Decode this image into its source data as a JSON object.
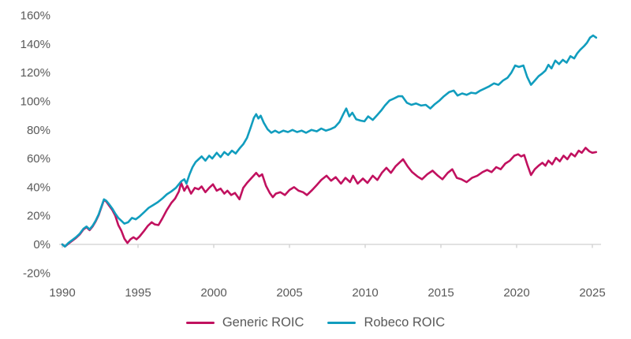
{
  "chart_data": {
    "type": "line",
    "title": "",
    "xlabel": "",
    "ylabel": "",
    "xlim": [
      1990,
      2025.3
    ],
    "ylim": [
      -20,
      160
    ],
    "x_tick_values": [
      1990,
      1995,
      2000,
      2005,
      2010,
      2015,
      2020,
      2025
    ],
    "x_tick_labels": [
      "1990",
      "1995",
      "2000",
      "2005",
      "2010",
      "2015",
      "2020",
      "2025"
    ],
    "y_tick_values": [
      160,
      140,
      120,
      100,
      80,
      60,
      40,
      20,
      0,
      -20
    ],
    "y_tick_labels": [
      "160%",
      "140%",
      "120%",
      "100%",
      "80%",
      "60%",
      "40%",
      "20%",
      "0%",
      "-20%"
    ],
    "grid": "zero-baseline-only",
    "legend_position": "bottom-center",
    "series": [
      {
        "name": "Generic ROIC",
        "color": "#C1115F",
        "points": [
          [
            1990.0,
            0
          ],
          [
            1990.17,
            -1.5
          ],
          [
            1990.4,
            0.5
          ],
          [
            1990.65,
            2.5
          ],
          [
            1990.9,
            4.5
          ],
          [
            1991.15,
            7
          ],
          [
            1991.4,
            10.5
          ],
          [
            1991.6,
            12
          ],
          [
            1991.8,
            10
          ],
          [
            1992.0,
            12.5
          ],
          [
            1992.2,
            16
          ],
          [
            1992.4,
            20.5
          ],
          [
            1992.6,
            26.5
          ],
          [
            1992.75,
            31
          ],
          [
            1992.9,
            30
          ],
          [
            1993.1,
            27
          ],
          [
            1993.3,
            24
          ],
          [
            1993.5,
            20
          ],
          [
            1993.7,
            13.5
          ],
          [
            1993.9,
            9.5
          ],
          [
            1994.1,
            4
          ],
          [
            1994.3,
            1
          ],
          [
            1994.5,
            3.5
          ],
          [
            1994.7,
            5
          ],
          [
            1994.9,
            3.5
          ],
          [
            1995.1,
            5.5
          ],
          [
            1995.4,
            9.5
          ],
          [
            1995.65,
            13
          ],
          [
            1995.9,
            15.5
          ],
          [
            1996.1,
            14
          ],
          [
            1996.35,
            13.5
          ],
          [
            1996.6,
            18
          ],
          [
            1996.9,
            24
          ],
          [
            1997.2,
            29
          ],
          [
            1997.45,
            32
          ],
          [
            1997.7,
            37
          ],
          [
            1997.85,
            43
          ],
          [
            1998.05,
            37.5
          ],
          [
            1998.25,
            41
          ],
          [
            1998.5,
            35.5
          ],
          [
            1998.75,
            39.5
          ],
          [
            1999.0,
            38.5
          ],
          [
            1999.2,
            40.5
          ],
          [
            1999.45,
            36.5
          ],
          [
            1999.7,
            39.5
          ],
          [
            1999.95,
            42
          ],
          [
            2000.2,
            37.5
          ],
          [
            2000.45,
            39
          ],
          [
            2000.7,
            35.5
          ],
          [
            2000.9,
            37.5
          ],
          [
            2001.15,
            34.5
          ],
          [
            2001.4,
            36
          ],
          [
            2001.7,
            31.5
          ],
          [
            2001.95,
            39.5
          ],
          [
            2002.2,
            43
          ],
          [
            2002.5,
            46.5
          ],
          [
            2002.8,
            50
          ],
          [
            2003.0,
            47.5
          ],
          [
            2003.2,
            49
          ],
          [
            2003.45,
            41
          ],
          [
            2003.7,
            36
          ],
          [
            2003.9,
            33
          ],
          [
            2004.1,
            35.5
          ],
          [
            2004.4,
            36.5
          ],
          [
            2004.7,
            34.5
          ],
          [
            2005.0,
            38
          ],
          [
            2005.3,
            40
          ],
          [
            2005.6,
            37.5
          ],
          [
            2005.9,
            36.5
          ],
          [
            2006.15,
            34.5
          ],
          [
            2006.5,
            38
          ],
          [
            2006.8,
            41.5
          ],
          [
            2007.1,
            45
          ],
          [
            2007.45,
            48
          ],
          [
            2007.75,
            44.5
          ],
          [
            2008.05,
            47
          ],
          [
            2008.4,
            42.5
          ],
          [
            2008.7,
            46.5
          ],
          [
            2009.0,
            43.5
          ],
          [
            2009.2,
            48
          ],
          [
            2009.5,
            42.5
          ],
          [
            2009.85,
            46
          ],
          [
            2010.15,
            43
          ],
          [
            2010.5,
            48
          ],
          [
            2010.8,
            45
          ],
          [
            2011.1,
            50
          ],
          [
            2011.4,
            53.5
          ],
          [
            2011.7,
            50
          ],
          [
            2012.0,
            54.5
          ],
          [
            2012.3,
            57.5
          ],
          [
            2012.5,
            59.5
          ],
          [
            2012.8,
            54.5
          ],
          [
            2013.1,
            50.5
          ],
          [
            2013.45,
            47.5
          ],
          [
            2013.75,
            45.5
          ],
          [
            2014.1,
            49
          ],
          [
            2014.45,
            51.5
          ],
          [
            2014.8,
            48
          ],
          [
            2015.1,
            45.5
          ],
          [
            2015.45,
            50
          ],
          [
            2015.75,
            52.5
          ],
          [
            2016.05,
            46.5
          ],
          [
            2016.35,
            45.5
          ],
          [
            2016.7,
            43.5
          ],
          [
            2017.05,
            46.5
          ],
          [
            2017.4,
            48
          ],
          [
            2017.75,
            50.5
          ],
          [
            2018.05,
            52
          ],
          [
            2018.35,
            50.5
          ],
          [
            2018.65,
            54
          ],
          [
            2018.95,
            52.5
          ],
          [
            2019.25,
            56.5
          ],
          [
            2019.55,
            58.5
          ],
          [
            2019.85,
            62
          ],
          [
            2020.1,
            63
          ],
          [
            2020.3,
            61.5
          ],
          [
            2020.5,
            62.5
          ],
          [
            2020.7,
            56
          ],
          [
            2020.95,
            48.5
          ],
          [
            2021.2,
            52.5
          ],
          [
            2021.45,
            55
          ],
          [
            2021.7,
            57
          ],
          [
            2021.9,
            55
          ],
          [
            2022.1,
            58.5
          ],
          [
            2022.35,
            56
          ],
          [
            2022.6,
            60.5
          ],
          [
            2022.85,
            58
          ],
          [
            2023.1,
            62
          ],
          [
            2023.35,
            59.5
          ],
          [
            2023.6,
            63.5
          ],
          [
            2023.85,
            61.5
          ],
          [
            2024.1,
            65.5
          ],
          [
            2024.3,
            64
          ],
          [
            2024.55,
            67.5
          ],
          [
            2024.8,
            65
          ],
          [
            2025.0,
            64
          ],
          [
            2025.25,
            64.5
          ]
        ]
      },
      {
        "name": "Robeco ROIC",
        "color": "#119DBE",
        "points": [
          [
            1990.0,
            0
          ],
          [
            1990.17,
            -1.5
          ],
          [
            1990.4,
            1
          ],
          [
            1990.65,
            3
          ],
          [
            1990.9,
            5
          ],
          [
            1991.15,
            7.5
          ],
          [
            1991.4,
            11
          ],
          [
            1991.6,
            12.5
          ],
          [
            1991.8,
            10.5
          ],
          [
            1992.0,
            13
          ],
          [
            1992.2,
            16.5
          ],
          [
            1992.4,
            21
          ],
          [
            1992.6,
            27
          ],
          [
            1992.75,
            31.5
          ],
          [
            1992.9,
            30.5
          ],
          [
            1993.1,
            28
          ],
          [
            1993.3,
            25
          ],
          [
            1993.5,
            21.5
          ],
          [
            1993.7,
            18.5
          ],
          [
            1993.9,
            16.5
          ],
          [
            1994.1,
            14.5
          ],
          [
            1994.35,
            15.5
          ],
          [
            1994.6,
            18.5
          ],
          [
            1994.85,
            17.5
          ],
          [
            1995.1,
            19.5
          ],
          [
            1995.4,
            22.5
          ],
          [
            1995.7,
            25.5
          ],
          [
            1996.0,
            27.5
          ],
          [
            1996.3,
            29.5
          ],
          [
            1996.6,
            32
          ],
          [
            1996.9,
            35
          ],
          [
            1997.2,
            37
          ],
          [
            1997.5,
            39.5
          ],
          [
            1997.85,
            44
          ],
          [
            1998.05,
            45.5
          ],
          [
            1998.2,
            42.5
          ],
          [
            1998.4,
            49
          ],
          [
            1998.6,
            54
          ],
          [
            1998.8,
            57.5
          ],
          [
            1999.0,
            59.5
          ],
          [
            1999.2,
            61.5
          ],
          [
            1999.45,
            58.5
          ],
          [
            1999.7,
            62
          ],
          [
            1999.9,
            60
          ],
          [
            2000.2,
            64
          ],
          [
            2000.45,
            61
          ],
          [
            2000.7,
            64.5
          ],
          [
            2000.95,
            62.5
          ],
          [
            2001.2,
            65.5
          ],
          [
            2001.45,
            63.5
          ],
          [
            2001.7,
            67
          ],
          [
            2001.95,
            70
          ],
          [
            2002.2,
            74.5
          ],
          [
            2002.45,
            82
          ],
          [
            2002.65,
            88.5
          ],
          [
            2002.8,
            91
          ],
          [
            2002.95,
            88
          ],
          [
            2003.1,
            90
          ],
          [
            2003.3,
            85
          ],
          [
            2003.55,
            80.5
          ],
          [
            2003.8,
            78
          ],
          [
            2004.05,
            79.5
          ],
          [
            2004.3,
            78
          ],
          [
            2004.6,
            79.5
          ],
          [
            2004.9,
            78.5
          ],
          [
            2005.2,
            80
          ],
          [
            2005.5,
            78.5
          ],
          [
            2005.8,
            79.5
          ],
          [
            2006.1,
            78
          ],
          [
            2006.45,
            80
          ],
          [
            2006.8,
            79
          ],
          [
            2007.1,
            81
          ],
          [
            2007.4,
            79.5
          ],
          [
            2007.7,
            80.5
          ],
          [
            2008.0,
            82
          ],
          [
            2008.3,
            85.5
          ],
          [
            2008.55,
            91
          ],
          [
            2008.75,
            95
          ],
          [
            2008.95,
            89.5
          ],
          [
            2009.15,
            92
          ],
          [
            2009.4,
            87.5
          ],
          [
            2009.7,
            86.5
          ],
          [
            2009.95,
            86
          ],
          [
            2010.2,
            89.5
          ],
          [
            2010.5,
            87
          ],
          [
            2010.8,
            90.5
          ],
          [
            2011.05,
            93.5
          ],
          [
            2011.3,
            97
          ],
          [
            2011.6,
            100.5
          ],
          [
            2011.9,
            102
          ],
          [
            2012.2,
            103.5
          ],
          [
            2012.45,
            103.5
          ],
          [
            2012.75,
            99
          ],
          [
            2013.05,
            97.5
          ],
          [
            2013.35,
            98.5
          ],
          [
            2013.7,
            97
          ],
          [
            2014.0,
            97.5
          ],
          [
            2014.3,
            95
          ],
          [
            2014.6,
            98
          ],
          [
            2014.9,
            100.5
          ],
          [
            2015.2,
            103.5
          ],
          [
            2015.55,
            106.5
          ],
          [
            2015.85,
            107.5
          ],
          [
            2016.1,
            104
          ],
          [
            2016.4,
            105.5
          ],
          [
            2016.7,
            104.5
          ],
          [
            2017.0,
            106
          ],
          [
            2017.3,
            105.5
          ],
          [
            2017.6,
            107.5
          ],
          [
            2017.9,
            109
          ],
          [
            2018.2,
            110.5
          ],
          [
            2018.5,
            112.5
          ],
          [
            2018.8,
            111.5
          ],
          [
            2019.1,
            114.5
          ],
          [
            2019.4,
            116.5
          ],
          [
            2019.65,
            120
          ],
          [
            2019.9,
            125
          ],
          [
            2020.15,
            124
          ],
          [
            2020.45,
            125
          ],
          [
            2020.7,
            117
          ],
          [
            2020.95,
            111.5
          ],
          [
            2021.2,
            114.5
          ],
          [
            2021.45,
            117.5
          ],
          [
            2021.7,
            119.5
          ],
          [
            2021.9,
            121.5
          ],
          [
            2022.1,
            125.5
          ],
          [
            2022.3,
            123
          ],
          [
            2022.55,
            128.5
          ],
          [
            2022.8,
            126
          ],
          [
            2023.05,
            129
          ],
          [
            2023.3,
            127
          ],
          [
            2023.55,
            131.5
          ],
          [
            2023.8,
            130
          ],
          [
            2024.0,
            133.5
          ],
          [
            2024.2,
            136
          ],
          [
            2024.45,
            138.5
          ],
          [
            2024.65,
            141
          ],
          [
            2024.85,
            144.5
          ],
          [
            2025.05,
            146
          ],
          [
            2025.25,
            144.5
          ]
        ]
      }
    ]
  },
  "colors": {
    "background": "#FFFFFF",
    "axis_text": "#595959",
    "axis_line": "#D0D0D0",
    "generic_roic": "#C1115F",
    "robeco_roic": "#119DBE"
  }
}
